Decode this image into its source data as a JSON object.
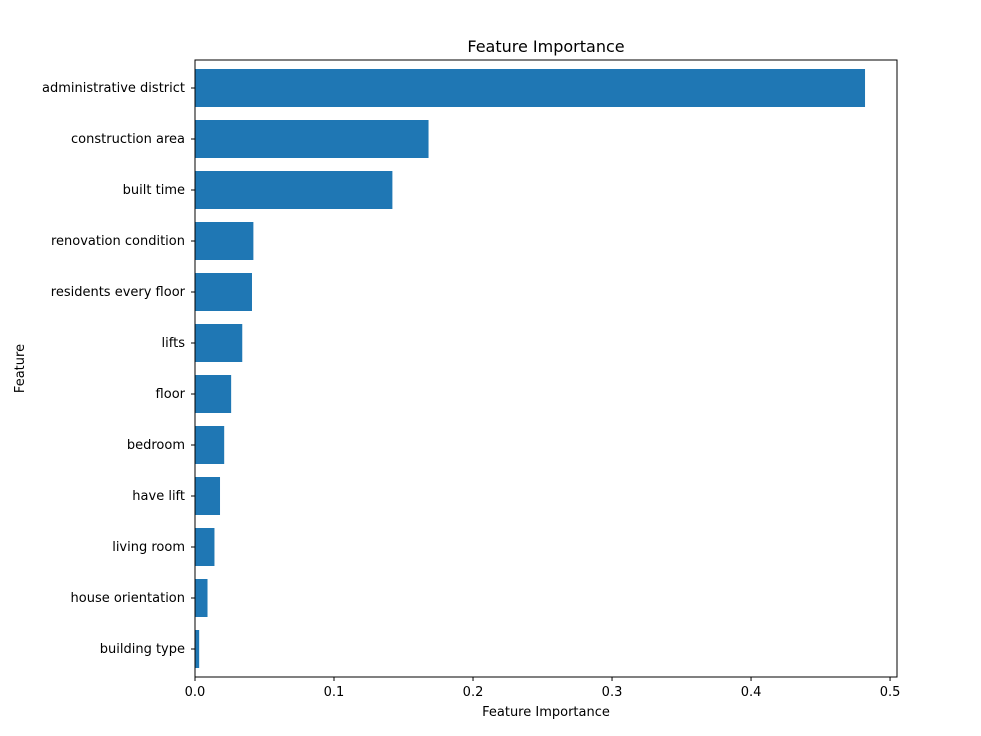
{
  "chart_data": {
    "type": "bar",
    "orientation": "horizontal",
    "title": "Feature Importance",
    "xlabel": "Feature Importance",
    "ylabel": "Feature",
    "categories": [
      "administrative district",
      "construction area",
      "built time",
      "renovation condition",
      "residents every floor",
      "lifts",
      "floor",
      "bedroom",
      "have lift",
      "living room",
      "house orientation",
      "building type"
    ],
    "values": [
      0.482,
      0.168,
      0.142,
      0.042,
      0.041,
      0.034,
      0.026,
      0.021,
      0.018,
      0.014,
      0.009,
      0.003
    ],
    "xlim": [
      0,
      0.505
    ],
    "xticks": [
      0.0,
      0.1,
      0.2,
      0.3,
      0.4,
      0.5
    ],
    "xtick_labels": [
      "0.0",
      "0.1",
      "0.2",
      "0.3",
      "0.4",
      "0.5"
    ],
    "bar_color": "#1f77b4",
    "grid": false,
    "legend": "none"
  }
}
